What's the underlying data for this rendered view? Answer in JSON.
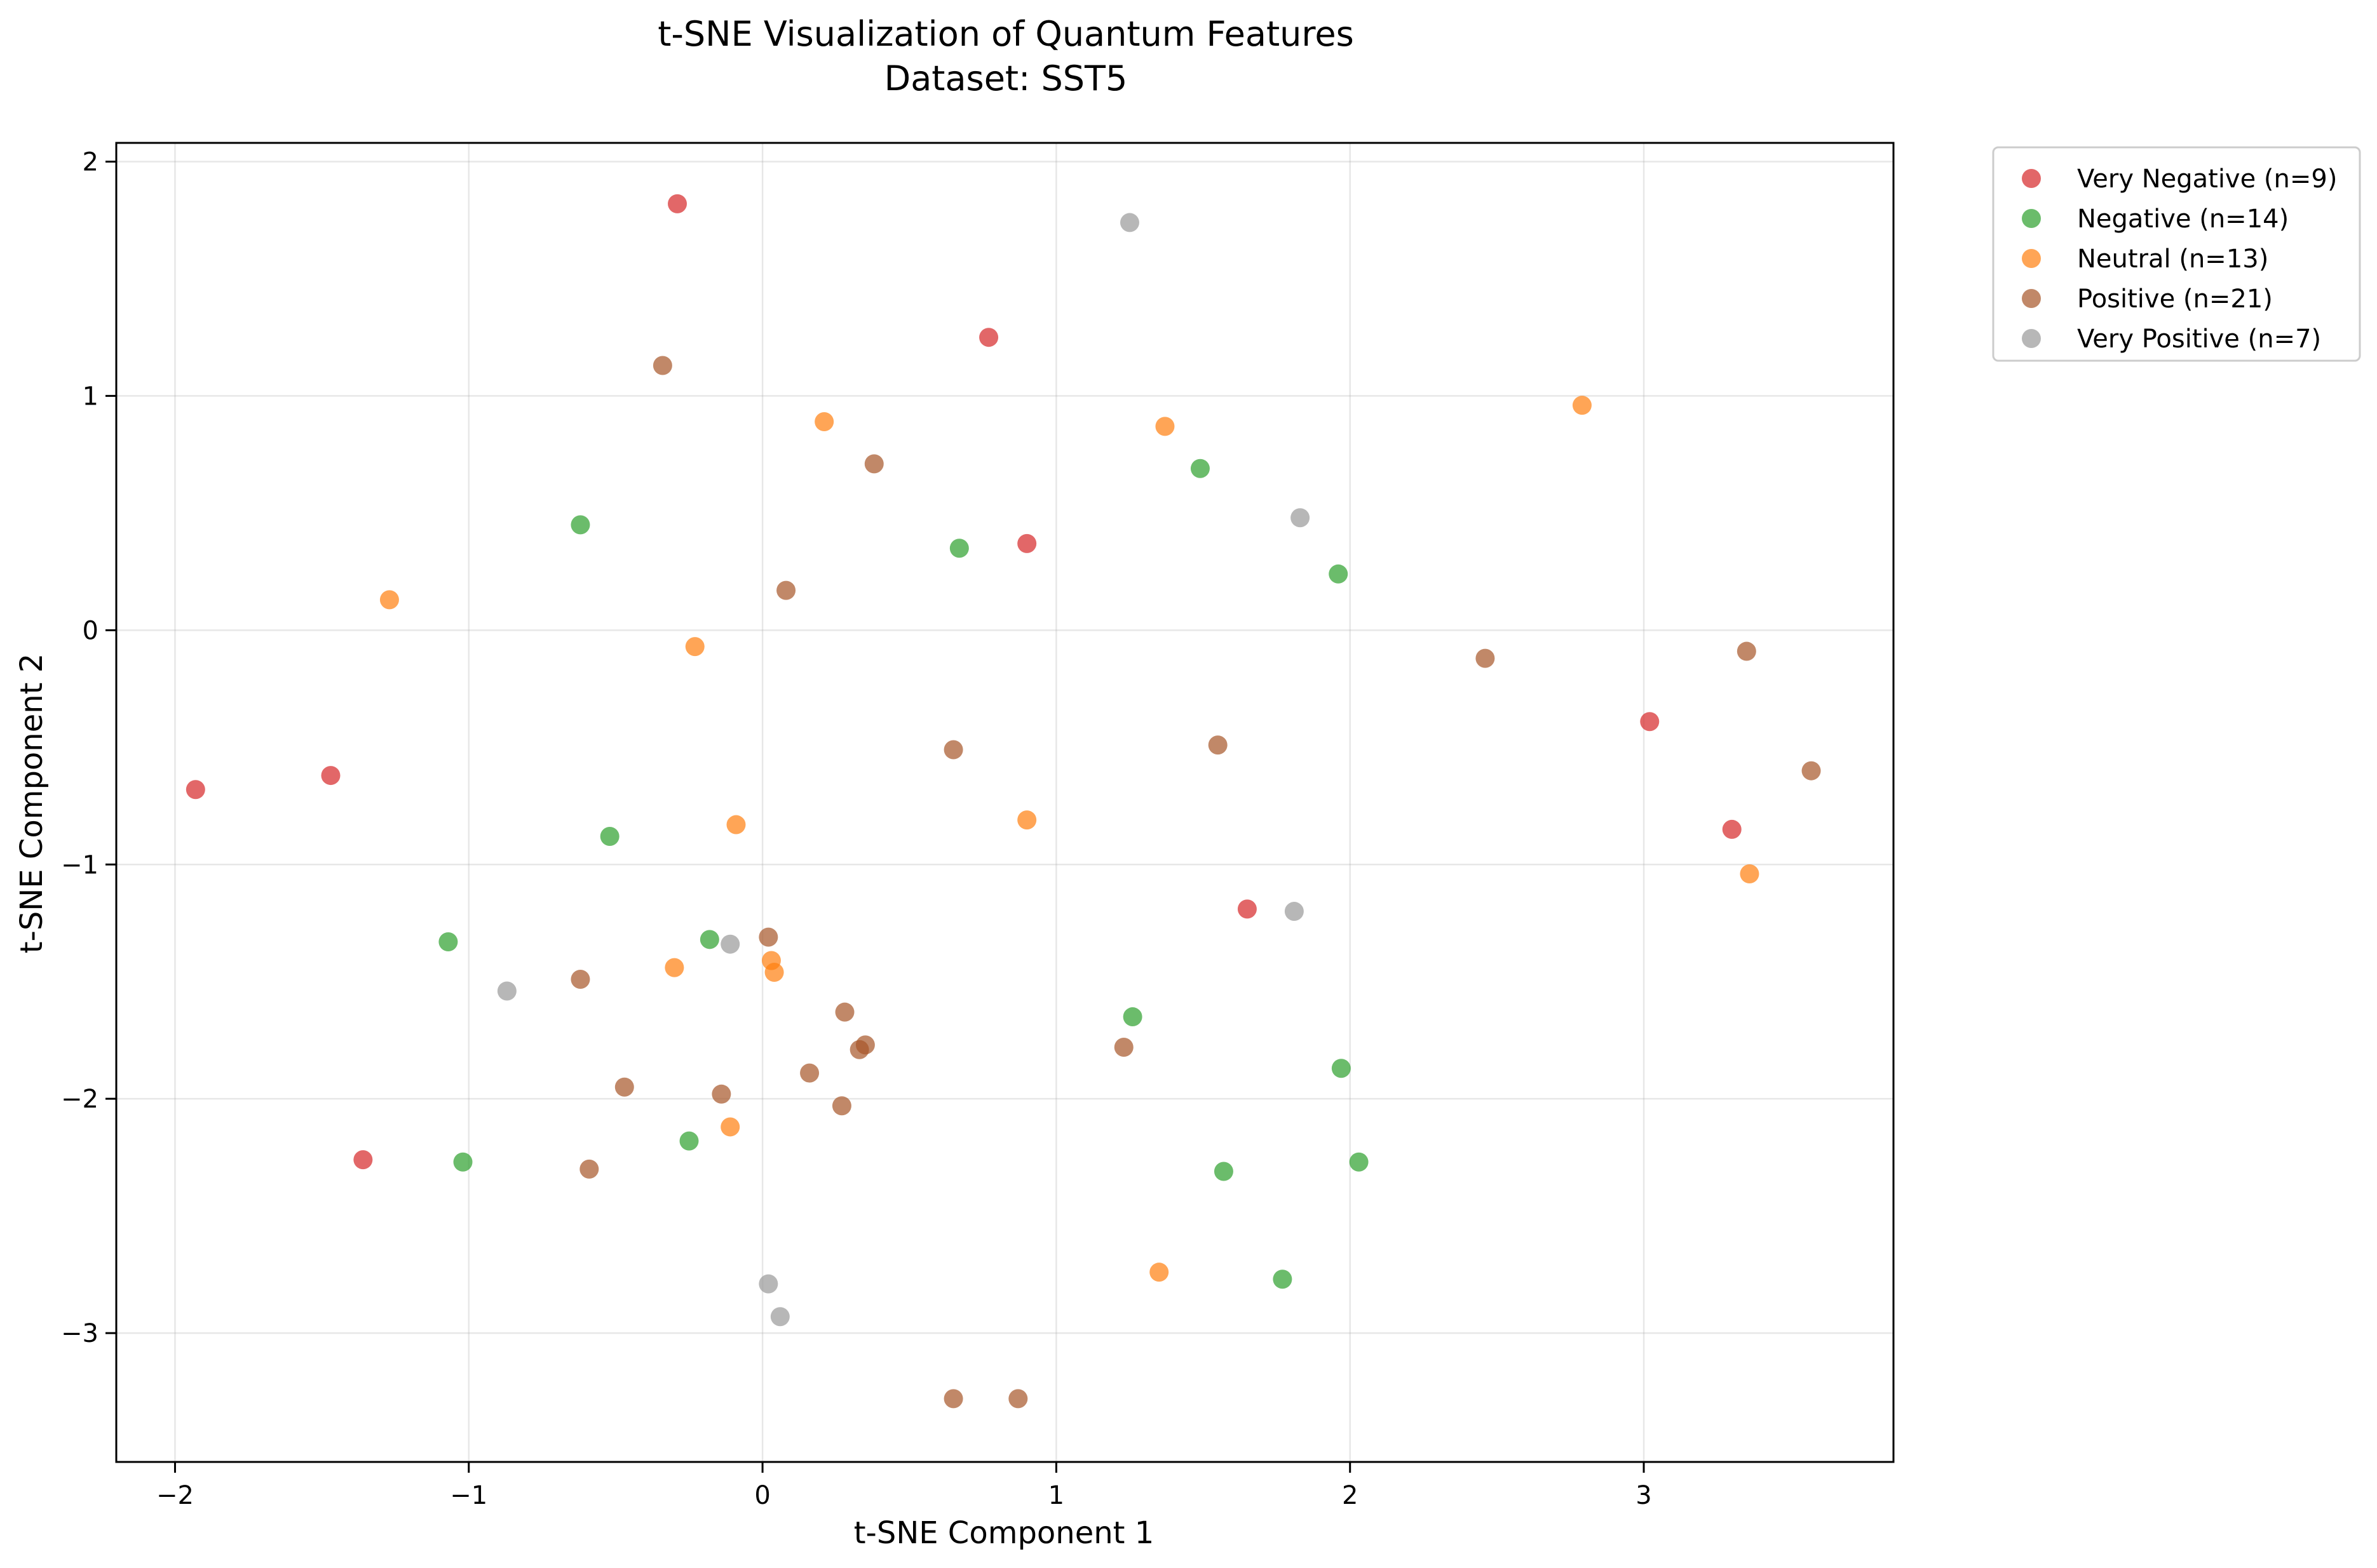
{
  "chart_data": {
    "type": "scatter",
    "title": "t-SNE Visualization of Quantum Features",
    "subtitle": "Dataset: SST5",
    "xlabel": "t-SNE Component 1",
    "ylabel": "t-SNE Component 2",
    "xlim": [
      -2.2,
      3.85
    ],
    "ylim": [
      -3.55,
      2.08
    ],
    "x_ticks": [
      -2,
      -1,
      0,
      1,
      2,
      3
    ],
    "y_ticks": [
      -3,
      -2,
      -1,
      0,
      1,
      2
    ],
    "x_tick_labels": [
      "−2",
      "−1",
      "0",
      "1",
      "2",
      "3"
    ],
    "y_tick_labels": [
      "−3",
      "−2",
      "−1",
      "0",
      "1",
      "2"
    ],
    "grid": true,
    "legend_position": "outside-top-right",
    "series": [
      {
        "name": "Very Negative (n=9)",
        "color": "#d62728",
        "points": [
          [
            -0.29,
            1.82
          ],
          [
            0.77,
            1.25
          ],
          [
            0.9,
            0.37
          ],
          [
            -1.93,
            -0.68
          ],
          [
            -1.47,
            -0.62
          ],
          [
            3.02,
            -0.39
          ],
          [
            3.3,
            -0.85
          ],
          [
            1.65,
            -1.19
          ],
          [
            -1.36,
            -2.26
          ]
        ]
      },
      {
        "name": "Negative (n=14)",
        "color": "#2ca02c",
        "points": [
          [
            -0.62,
            0.45
          ],
          [
            0.67,
            0.35
          ],
          [
            1.49,
            0.69
          ],
          [
            1.96,
            0.24
          ],
          [
            -0.52,
            -0.88
          ],
          [
            -1.07,
            -1.33
          ],
          [
            -0.18,
            -1.32
          ],
          [
            1.26,
            -1.65
          ],
          [
            1.97,
            -1.87
          ],
          [
            -1.02,
            -2.27
          ],
          [
            -0.25,
            -2.18
          ],
          [
            1.57,
            -2.31
          ],
          [
            2.03,
            -2.27
          ],
          [
            1.77,
            -2.77
          ]
        ]
      },
      {
        "name": "Neutral (n=13)",
        "color": "#ff7f0e",
        "points": [
          [
            -1.27,
            0.13
          ],
          [
            0.21,
            0.89
          ],
          [
            1.37,
            0.87
          ],
          [
            2.79,
            0.96
          ],
          [
            -0.23,
            -0.07
          ],
          [
            -0.09,
            -0.83
          ],
          [
            0.9,
            -0.81
          ],
          [
            3.36,
            -1.04
          ],
          [
            -0.3,
            -1.44
          ],
          [
            0.03,
            -1.41
          ],
          [
            0.04,
            -1.46
          ],
          [
            -0.11,
            -2.12
          ],
          [
            1.35,
            -2.74
          ]
        ]
      },
      {
        "name": "Positive (n=21)",
        "color": "#a65628",
        "points": [
          [
            -0.34,
            1.13
          ],
          [
            0.38,
            0.71
          ],
          [
            0.08,
            0.17
          ],
          [
            0.65,
            -0.51
          ],
          [
            1.55,
            -0.49
          ],
          [
            2.46,
            -0.12
          ],
          [
            3.35,
            -0.09
          ],
          [
            3.57,
            -0.6
          ],
          [
            0.02,
            -1.31
          ],
          [
            -0.62,
            -1.49
          ],
          [
            0.28,
            -1.63
          ],
          [
            0.33,
            -1.79
          ],
          [
            0.35,
            -1.77
          ],
          [
            1.23,
            -1.78
          ],
          [
            0.16,
            -1.89
          ],
          [
            -0.47,
            -1.95
          ],
          [
            -0.14,
            -1.98
          ],
          [
            0.27,
            -2.03
          ],
          [
            -0.59,
            -2.3
          ],
          [
            0.65,
            -3.28
          ],
          [
            0.87,
            -3.28
          ]
        ]
      },
      {
        "name": "Very Positive (n=7)",
        "color": "#999999",
        "points": [
          [
            1.25,
            1.74
          ],
          [
            1.83,
            0.48
          ],
          [
            1.81,
            -1.2
          ],
          [
            -0.11,
            -1.34
          ],
          [
            -0.87,
            -1.54
          ],
          [
            0.02,
            -2.79
          ],
          [
            0.06,
            -2.93
          ]
        ]
      }
    ]
  }
}
